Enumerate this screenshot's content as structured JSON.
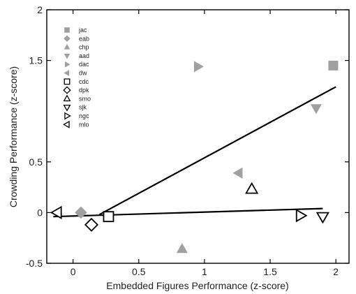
{
  "chart_data": {
    "type": "scatter",
    "xlabel": "Embedded Figures Performance (z-score)",
    "ylabel": "Crowding Performance (z-score)",
    "xlim": [
      -0.2,
      2.1
    ],
    "ylim": [
      -0.5,
      2.0
    ],
    "x_ticks": [
      0,
      0.5,
      1,
      1.5,
      2
    ],
    "x_tick_labels": [
      "0",
      "0.5",
      "1",
      "1.5",
      "2"
    ],
    "y_ticks": [
      -0.5,
      0,
      0.5,
      1.5,
      2
    ],
    "y_tick_labels": [
      "-0.5",
      "0",
      "0.5",
      "1.5",
      "2"
    ],
    "grid": false,
    "legend_position": "top-left",
    "colors": {
      "filled": "#a0a0a0",
      "open": "#000000",
      "line": "#000000"
    },
    "series": [
      {
        "name": "jac",
        "marker": "square",
        "filled": true,
        "x": 1.98,
        "y": 1.45
      },
      {
        "name": "eab",
        "marker": "diamond",
        "filled": true,
        "x": 0.06,
        "y": 0.0
      },
      {
        "name": "chp",
        "marker": "triangle-up",
        "filled": true,
        "x": 0.83,
        "y": -0.36
      },
      {
        "name": "aad",
        "marker": "triangle-down",
        "filled": true,
        "x": 1.85,
        "y": 1.03
      },
      {
        "name": "dac",
        "marker": "triangle-right",
        "filled": true,
        "x": 0.95,
        "y": 1.44
      },
      {
        "name": "dw",
        "marker": "triangle-left",
        "filled": true,
        "x": 1.26,
        "y": 0.39
      },
      {
        "name": "cdc",
        "marker": "square",
        "filled": false,
        "x": 0.27,
        "y": -0.04
      },
      {
        "name": "dpk",
        "marker": "diamond",
        "filled": false,
        "x": 0.14,
        "y": -0.12
      },
      {
        "name": "smo",
        "marker": "triangle-up",
        "filled": false,
        "x": 1.36,
        "y": 0.23
      },
      {
        "name": "sjk",
        "marker": "triangle-down",
        "filled": false,
        "x": 1.9,
        "y": -0.04
      },
      {
        "name": "ngc",
        "marker": "triangle-right",
        "filled": false,
        "x": 1.73,
        "y": -0.03
      },
      {
        "name": "mlo",
        "marker": "triangle-left",
        "filled": false,
        "x": -0.12,
        "y": 0.0
      }
    ],
    "fit_lines": [
      {
        "x": [
          0.2,
          2.0
        ],
        "y": [
          -0.02,
          1.24
        ]
      },
      {
        "x": [
          -0.15,
          1.9
        ],
        "y": [
          -0.04,
          0.04
        ]
      }
    ]
  }
}
